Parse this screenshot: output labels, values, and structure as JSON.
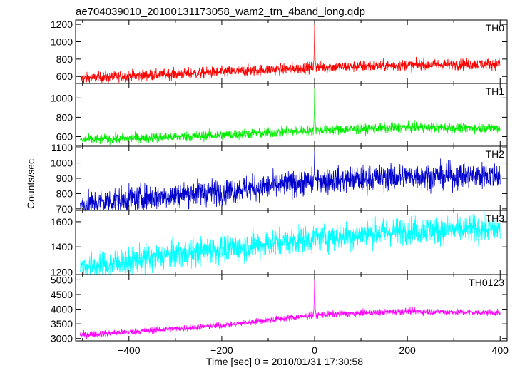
{
  "chart_data": {
    "type": "line",
    "title": "ae704039010_20100131173058_wam2_trn_4band_long.qdp",
    "xlabel": "Time [sec] 0 = 2010/01/31 17:30:58",
    "ylabel": "Counts/sec",
    "xlim": [
      -515,
      415
    ],
    "x_ticks": [
      -400,
      -200,
      0,
      200,
      400
    ],
    "grid": false,
    "panels": [
      {
        "name": "TH0",
        "color": "#ff0000",
        "ylim": [
          520,
          1250
        ],
        "y_ticks": [
          600,
          800,
          1000,
          1200
        ],
        "trend": [
          [
            -505,
            575
          ],
          [
            -400,
            605
          ],
          [
            -200,
            650
          ],
          [
            0,
            705
          ],
          [
            200,
            730
          ],
          [
            400,
            745
          ]
        ],
        "noise": 32,
        "spike": {
          "x": 0,
          "peak": 1230
        }
      },
      {
        "name": "TH1",
        "color": "#00ee00",
        "ylim": [
          500,
          1150
        ],
        "y_ticks": [
          600,
          800,
          1000
        ],
        "trend": [
          [
            -505,
            565
          ],
          [
            -400,
            580
          ],
          [
            -200,
            615
          ],
          [
            0,
            665
          ],
          [
            200,
            695
          ],
          [
            400,
            690
          ]
        ],
        "noise": 26,
        "spike": {
          "x": 0,
          "peak": 1145
        }
      },
      {
        "name": "TH2",
        "color": "#0000cc",
        "ylim": [
          690,
          1110
        ],
        "y_ticks": [
          700,
          800,
          900,
          1000,
          1100
        ],
        "trend": [
          [
            -505,
            725
          ],
          [
            -400,
            765
          ],
          [
            -200,
            815
          ],
          [
            0,
            880
          ],
          [
            200,
            910
          ],
          [
            400,
            920
          ]
        ],
        "noise": 42,
        "spike": {
          "x": 0,
          "peak": 1085
        }
      },
      {
        "name": "TH3",
        "color": "#00ffff",
        "ylim": [
          1180,
          1690
        ],
        "y_ticks": [
          1200,
          1400,
          1600
        ],
        "trend": [
          [
            -505,
            1235
          ],
          [
            -400,
            1285
          ],
          [
            -200,
            1385
          ],
          [
            0,
            1465
          ],
          [
            200,
            1530
          ],
          [
            400,
            1545
          ]
        ],
        "noise": 55,
        "spike": null
      },
      {
        "name": "TH0123",
        "color": "#ff00ff",
        "ylim": [
          2920,
          5180
        ],
        "y_ticks": [
          3000,
          3500,
          4000,
          4500,
          5000
        ],
        "trend": [
          [
            -505,
            3120
          ],
          [
            -400,
            3220
          ],
          [
            -200,
            3450
          ],
          [
            0,
            3800
          ],
          [
            200,
            3930
          ],
          [
            400,
            3880
          ]
        ],
        "noise": 55,
        "spike": {
          "x": 0,
          "peak": 5150
        }
      }
    ]
  }
}
